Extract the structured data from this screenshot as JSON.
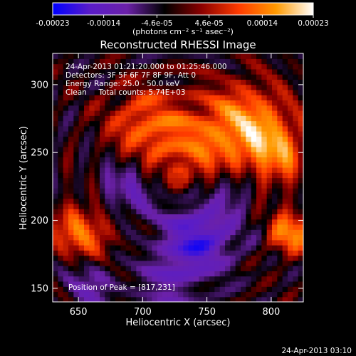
{
  "colorbar": {
    "tick_labels": [
      "-0.00023",
      "-0.00014",
      "-4.6e-05",
      "4.6e-05",
      "0.00014",
      "0.00023"
    ],
    "tick_values": [
      -0.00023,
      -0.00014,
      -4.6e-05,
      4.6e-05,
      0.00014,
      0.00023
    ],
    "range": [
      -0.00023,
      0.00023
    ],
    "unit_label": "(photons cm⁻² s⁻¹ asec⁻²)",
    "colors": [
      "#0000ff",
      "#5a1cc8",
      "#6b21a8",
      "#000000",
      "#8b0000",
      "#ff3b00",
      "#ff9a00",
      "#ffffff"
    ]
  },
  "chart_data": {
    "type": "heatmap",
    "title": "Reconstructed RHESSI Image",
    "xlabel": "Heliocentric X (arcsec)",
    "ylabel": "Heliocentric Y (arcsec)",
    "xlim": [
      630,
      825
    ],
    "ylim": [
      140,
      323
    ],
    "xticks": [
      650,
      700,
      750,
      800
    ],
    "yticks": [
      150,
      200,
      250,
      300
    ],
    "info_lines": [
      "24-Apr-2013 01:21:20.000 to 01:25:46.000",
      "Detectors: 3F 5F 6F 7F 8F 9F, Att 0",
      "Energy Range: 25.0 - 50.0 keV",
      "Clean     Total counts: 5.74E+03"
    ],
    "peak_label": "Position of Peak = [817,231]",
    "peak_position": [
      817,
      231
    ],
    "grid": false
  },
  "footer": {
    "timestamp": "24-Apr-2013 03:10"
  }
}
